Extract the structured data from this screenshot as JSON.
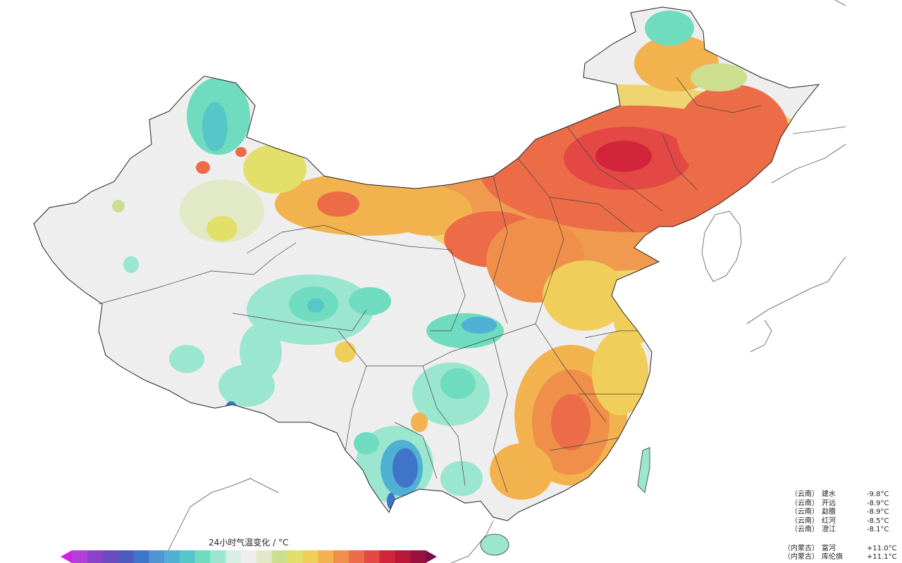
{
  "map": {
    "legend_title": "24小时气温变化 / °C",
    "colorbar_colors": [
      "#d41fe6",
      "#b23fd9",
      "#8c43cc",
      "#6a4cc0",
      "#4d5bbf",
      "#3f75c9",
      "#4f95d3",
      "#4fb0d4",
      "#56c7c8",
      "#6fdcc0",
      "#9be6cf",
      "#d8efe4",
      "#eeeeee",
      "#e2e9c6",
      "#cddf8e",
      "#e3e06a",
      "#efcf5a",
      "#f2b24e",
      "#f08f4a",
      "#ec6c48",
      "#e34844",
      "#d2243a",
      "#b81736",
      "#981141",
      "#7d0c4a"
    ],
    "stations": {
      "min_list": [
        {
          "province": "（云南）",
          "name": "建水",
          "value": "-9.8°C"
        },
        {
          "province": "（云南）",
          "name": "开远",
          "value": "-8.9°C"
        },
        {
          "province": "（云南）",
          "name": "勐腊",
          "value": "-8.9°C"
        },
        {
          "province": "（云南）",
          "name": "红河",
          "value": "-8.5°C"
        },
        {
          "province": "（云南）",
          "name": "澄江",
          "value": "-8.1°C"
        }
      ],
      "max_list": [
        {
          "province": "（内蒙古）",
          "name": "富河",
          "value": "+11.0°C"
        },
        {
          "province": "（内蒙古）",
          "name": "库伦旗",
          "value": "+11.1°C"
        }
      ]
    }
  }
}
